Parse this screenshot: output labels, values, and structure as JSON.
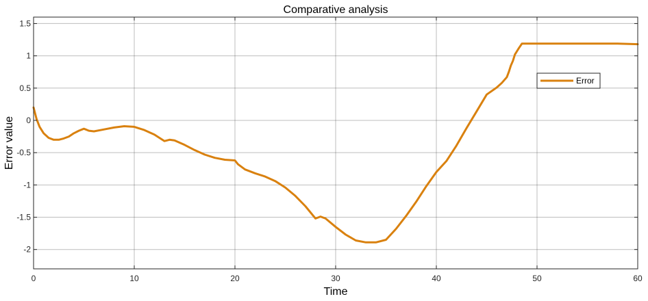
{
  "chart_data": {
    "type": "line",
    "title": "Comparative analysis",
    "xlabel": "Time",
    "ylabel": "Error value",
    "xlim": [
      0,
      60
    ],
    "ylim": [
      -2.3,
      1.6
    ],
    "xticks": [
      0,
      10,
      20,
      30,
      40,
      50,
      60
    ],
    "xtick_labels": [
      "0",
      "10",
      "20",
      "30",
      "40",
      "50",
      "60"
    ],
    "yticks": [
      1.5,
      1,
      0.5,
      0,
      -0.5,
      -1,
      -1.5,
      -2
    ],
    "ytick_labels": [
      "1.5",
      "1",
      "0.5",
      "0",
      "-0.5",
      "-1",
      "-1.5",
      "-2"
    ],
    "grid": true,
    "legend_position": "right",
    "series": [
      {
        "name": "Error",
        "color": "#D9810F",
        "x": [
          0,
          0.3,
          0.6,
          1.0,
          1.5,
          2.0,
          2.5,
          3.0,
          3.5,
          4.0,
          4.5,
          5.0,
          5.5,
          6.0,
          7.0,
          8.0,
          9.0,
          10.0,
          11.0,
          12.0,
          13.0,
          13.5,
          14.0,
          15.0,
          16.0,
          17.0,
          18.0,
          19.0,
          20.0,
          20.3,
          21.0,
          22.0,
          23.0,
          24.0,
          25.0,
          26.0,
          27.0,
          28.0,
          28.5,
          29.0,
          30.0,
          31.0,
          32.0,
          33.0,
          34.0,
          35.0,
          36.0,
          37.0,
          38.0,
          39.0,
          40.0,
          41.0,
          42.0,
          43.0,
          44.0,
          45.0,
          46.0,
          46.5,
          47.0,
          47.2,
          47.4,
          47.6,
          47.8,
          48.0,
          48.2,
          48.5,
          50.0,
          52.0,
          54.0,
          56.0,
          58.0,
          60.0
        ],
        "values": [
          0.2,
          0.02,
          -0.1,
          -0.2,
          -0.27,
          -0.3,
          -0.3,
          -0.28,
          -0.25,
          -0.2,
          -0.16,
          -0.13,
          -0.16,
          -0.17,
          -0.14,
          -0.11,
          -0.09,
          -0.1,
          -0.15,
          -0.22,
          -0.32,
          -0.3,
          -0.31,
          -0.38,
          -0.46,
          -0.53,
          -0.58,
          -0.61,
          -0.62,
          -0.68,
          -0.76,
          -0.82,
          -0.87,
          -0.94,
          -1.04,
          -1.17,
          -1.33,
          -1.52,
          -1.49,
          -1.52,
          -1.65,
          -1.77,
          -1.86,
          -1.89,
          -1.89,
          -1.85,
          -1.68,
          -1.48,
          -1.26,
          -1.02,
          -0.8,
          -0.63,
          -0.39,
          -0.12,
          0.14,
          0.4,
          0.51,
          0.58,
          0.67,
          0.75,
          0.85,
          0.92,
          1.02,
          1.07,
          1.12,
          1.19,
          1.19,
          1.19,
          1.19,
          1.19,
          1.19,
          1.18
        ]
      }
    ]
  }
}
